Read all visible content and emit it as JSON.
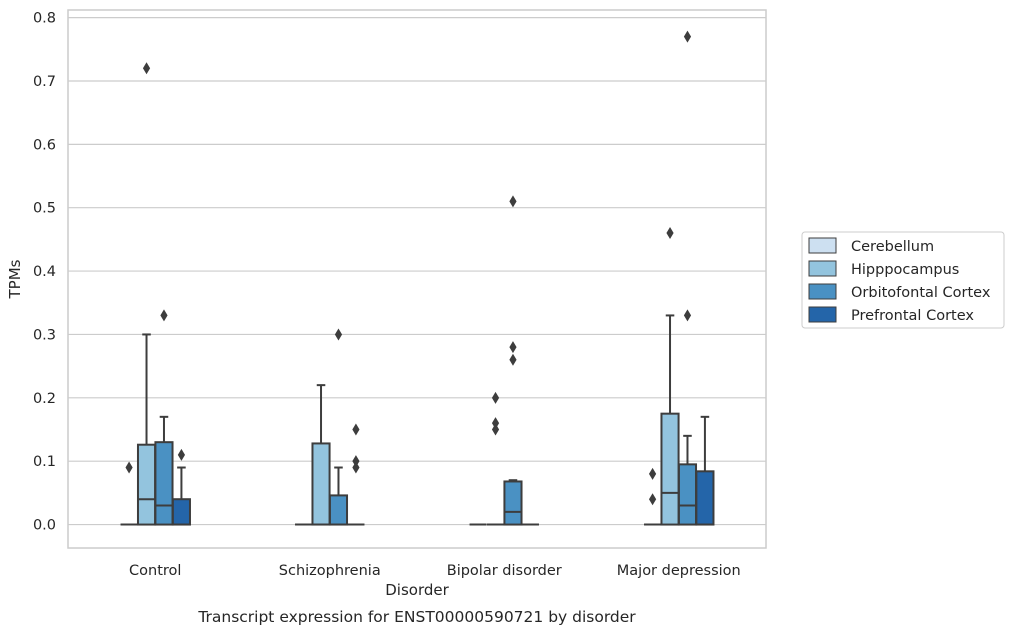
{
  "chart_data": {
    "type": "box",
    "caption": "Transcript expression for ENST00000590721 by disorder",
    "xlabel": "Disorder",
    "ylabel": "TPMs",
    "ylim": [
      -0.037,
      0.812
    ],
    "yticks": [
      0.0,
      0.1,
      0.2,
      0.3,
      0.4,
      0.5,
      0.6,
      0.7,
      0.8
    ],
    "ytick_labels": [
      "0.0",
      "0.1",
      "0.2",
      "0.3",
      "0.4",
      "0.5",
      "0.6",
      "0.7",
      "0.8"
    ],
    "grid": "horizontal",
    "legend_position": "right",
    "categories": [
      "Control",
      "Schizophrenia",
      "Bipolar disorder",
      "Major depression"
    ],
    "series": [
      {
        "name": "Cerebellum",
        "color": "#cde0f1",
        "boxes": [
          {
            "q1": 0,
            "median": 0,
            "q3": 0,
            "whislo": 0,
            "whishi": 0,
            "fliers": [
              0.09
            ]
          },
          {
            "q1": 0,
            "median": 0,
            "q3": 0,
            "whislo": 0,
            "whishi": 0,
            "fliers": []
          },
          {
            "q1": 0,
            "median": 0,
            "q3": 0,
            "whislo": 0,
            "whishi": 0,
            "fliers": []
          },
          {
            "q1": 0,
            "median": 0,
            "q3": 0,
            "whislo": 0,
            "whishi": 0,
            "fliers": [
              0.04,
              0.08
            ]
          }
        ]
      },
      {
        "name": "Hipppocampus",
        "color": "#93c4de",
        "boxes": [
          {
            "q1": 0,
            "median": 0.04,
            "q3": 0.126,
            "whislo": 0,
            "whishi": 0.3,
            "fliers": [
              0.72
            ]
          },
          {
            "q1": 0,
            "median": 0,
            "q3": 0.128,
            "whislo": 0,
            "whishi": 0.22,
            "fliers": []
          },
          {
            "q1": 0,
            "median": 0,
            "q3": 0,
            "whislo": 0,
            "whishi": 0,
            "fliers": [
              0.15,
              0.16,
              0.2
            ]
          },
          {
            "q1": 0,
            "median": 0.05,
            "q3": 0.175,
            "whislo": 0,
            "whishi": 0.33,
            "fliers": [
              0.46
            ]
          }
        ]
      },
      {
        "name": "Orbitofontal Cortex",
        "color": "#4a91c3",
        "boxes": [
          {
            "q1": 0,
            "median": 0.03,
            "q3": 0.13,
            "whislo": 0,
            "whishi": 0.17,
            "fliers": [
              0.33
            ]
          },
          {
            "q1": 0,
            "median": 0,
            "q3": 0.046,
            "whislo": 0,
            "whishi": 0.09,
            "fliers": [
              0.3
            ]
          },
          {
            "q1": 0,
            "median": 0.02,
            "q3": 0.068,
            "whislo": 0,
            "whishi": 0.07,
            "fliers": [
              0.26,
              0.28,
              0.51
            ]
          },
          {
            "q1": 0,
            "median": 0.03,
            "q3": 0.095,
            "whislo": 0,
            "whishi": 0.14,
            "fliers": [
              0.33,
              0.77
            ]
          }
        ]
      },
      {
        "name": "Prefrontal Cortex",
        "color": "#2465a9",
        "boxes": [
          {
            "q1": 0,
            "median": 0,
            "q3": 0.04,
            "whislo": 0,
            "whishi": 0.09,
            "fliers": [
              0.11
            ]
          },
          {
            "q1": 0,
            "median": 0,
            "q3": 0,
            "whislo": 0,
            "whishi": 0,
            "fliers": [
              0.09,
              0.1,
              0.15
            ]
          },
          {
            "q1": 0,
            "median": 0,
            "q3": 0,
            "whislo": 0,
            "whishi": 0,
            "fliers": []
          },
          {
            "q1": 0,
            "median": 0,
            "q3": 0.084,
            "whislo": 0,
            "whishi": 0.17,
            "fliers": []
          }
        ]
      }
    ]
  }
}
